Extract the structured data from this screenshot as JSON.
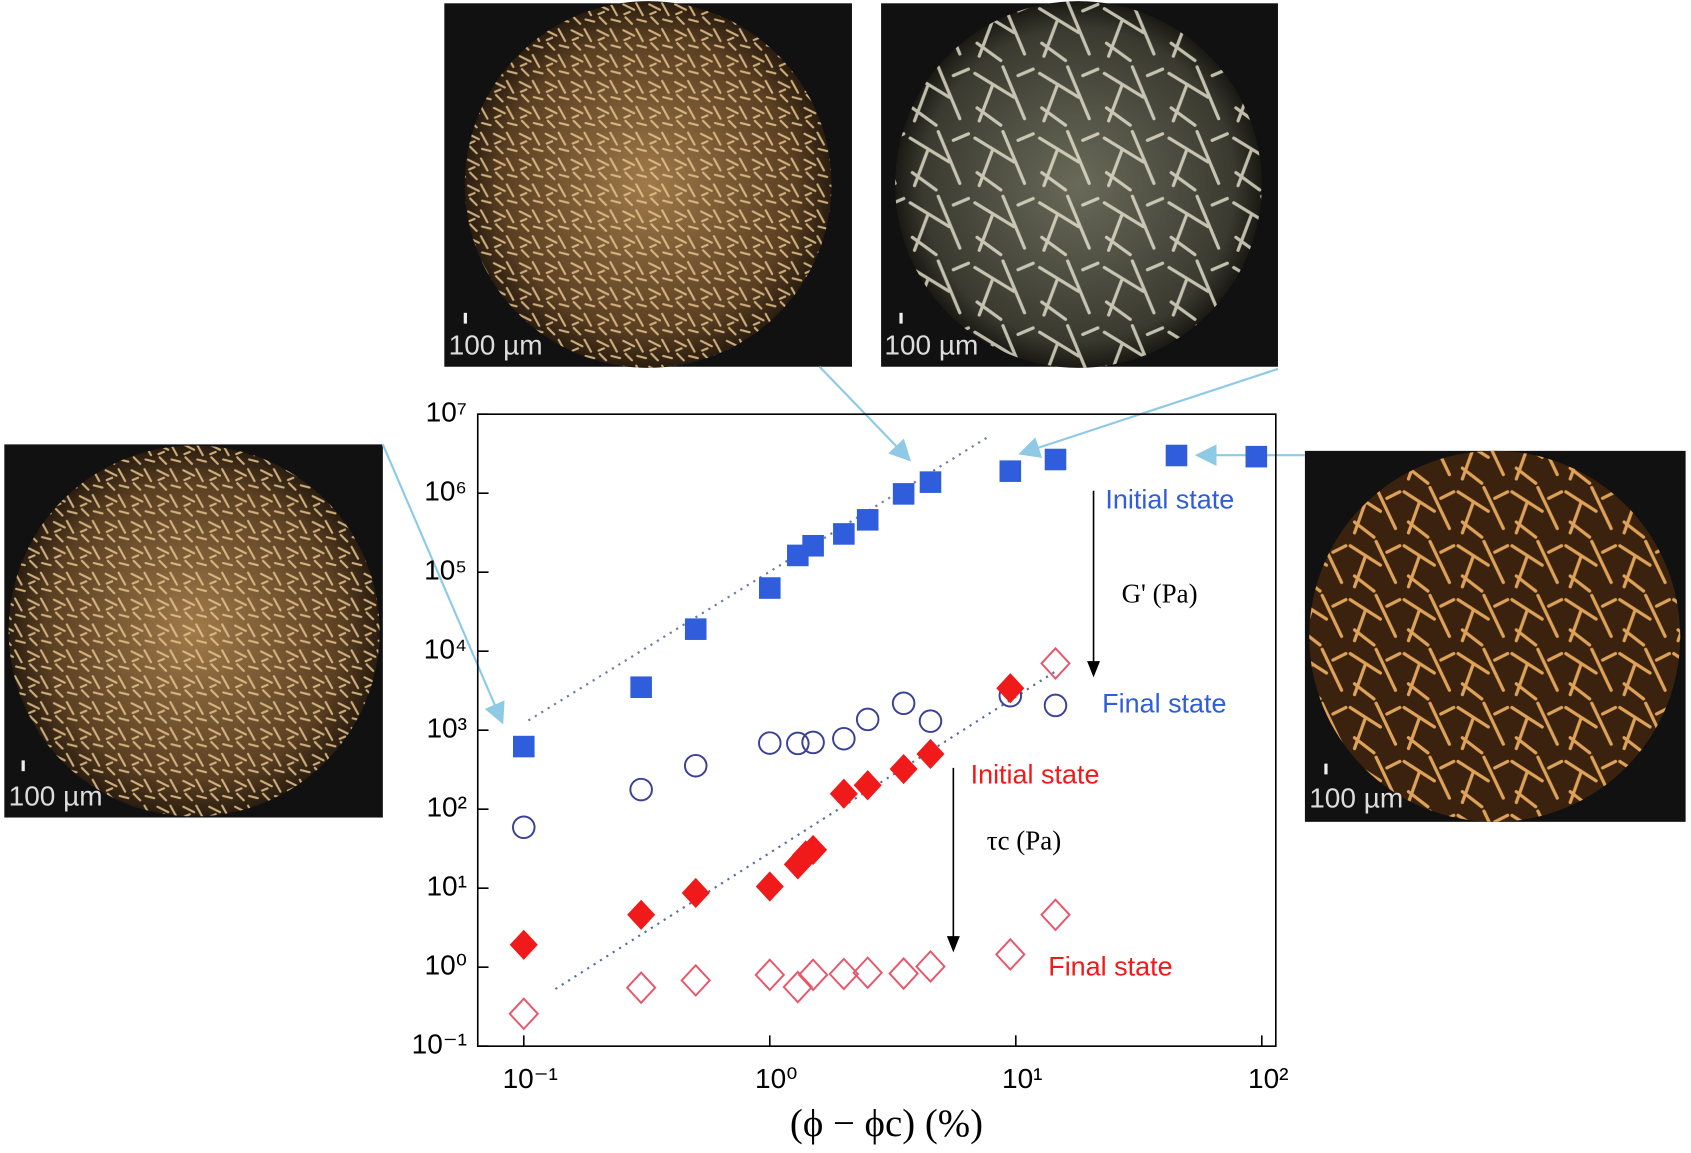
{
  "chart_data": {
    "type": "scatter",
    "xlog": true,
    "ylog": true,
    "xlim": [
      0.065,
      114
    ],
    "ylim": [
      0.1,
      10000000
    ],
    "xticks": [
      {
        "value": 0.1,
        "label": "10⁻¹"
      },
      {
        "value": 1,
        "label": "10⁰"
      },
      {
        "value": 10,
        "label": "10¹"
      },
      {
        "value": 100,
        "label": "10²"
      }
    ],
    "yticks": [
      {
        "value": 0.1,
        "label": "10⁻¹"
      },
      {
        "value": 1,
        "label": "10⁰"
      },
      {
        "value": 10,
        "label": "10¹"
      },
      {
        "value": 100,
        "label": "10²"
      },
      {
        "value": 1000,
        "label": "10³"
      },
      {
        "value": 10000,
        "label": "10⁴"
      },
      {
        "value": 100000,
        "label": "10⁵"
      },
      {
        "value": 1000000,
        "label": "10⁶"
      },
      {
        "value": 10000000,
        "label": "10⁷"
      }
    ],
    "xlabel": "(ϕ − ϕc) (%)",
    "series": [
      {
        "color": "#2f5ddb",
        "marker": "square",
        "filled": true,
        "x": [
          0.1,
          0.3,
          0.5,
          1,
          1.3,
          1.5,
          2,
          2.5,
          3.5,
          4.5,
          9.5,
          14.5,
          45,
          95
        ],
        "values": [
          620,
          3500,
          19000,
          63000,
          163000,
          216000,
          305000,
          460000,
          980000,
          1380000,
          1900000,
          2670000,
          3000000,
          2900000
        ]
      },
      {
        "color": "#3a3f9a",
        "marker": "circle",
        "filled": false,
        "x": [
          0.1,
          0.3,
          0.5,
          1,
          1.3,
          1.5,
          2,
          2.5,
          3.5,
          4.5,
          9.5,
          14.5
        ],
        "values": [
          59,
          177,
          355,
          686,
          680,
          700,
          780,
          1370,
          2190,
          1300,
          2730,
          2060
        ]
      },
      {
        "color": "#f01a1a",
        "marker": "diamond",
        "filled": true,
        "x": [
          0.1,
          0.3,
          0.5,
          1,
          1.3,
          1.4,
          1.5,
          2,
          2.5,
          3.5,
          4.5,
          9.5
        ],
        "values": [
          1.92,
          4.6,
          8.7,
          10.5,
          20,
          26,
          30.5,
          157,
          201,
          322,
          500,
          3400
        ]
      },
      {
        "color": "#e8566a",
        "marker": "diamond",
        "filled": false,
        "x": [
          0.1,
          0.3,
          0.5,
          1,
          1.3,
          1.5,
          2,
          2.5,
          3.5,
          4.5,
          9.5,
          14.5,
          14.5
        ],
        "values": [
          0.257,
          0.55,
          0.68,
          0.8,
          0.56,
          0.8,
          0.82,
          0.85,
          0.83,
          1.02,
          1.45,
          4.6,
          7000
        ]
      }
    ],
    "annotations": [
      {
        "text": "Initial state",
        "color": "#2f5ddb"
      },
      {
        "text": "G' (Pa)",
        "color": "#000000"
      },
      {
        "text": "Final state",
        "color": "#2f5ddb"
      },
      {
        "text": "Initial state",
        "color": "#f01a1a"
      },
      {
        "text": "τc (Pa)",
        "color": "#000000"
      },
      {
        "text": "Final state",
        "color": "#f01a1a"
      }
    ]
  },
  "insets": [
    {
      "scale_label": "100 µm"
    },
    {
      "scale_label": "100 µm"
    },
    {
      "scale_label": "100 µm"
    },
    {
      "scale_label": "100 µm"
    }
  ]
}
